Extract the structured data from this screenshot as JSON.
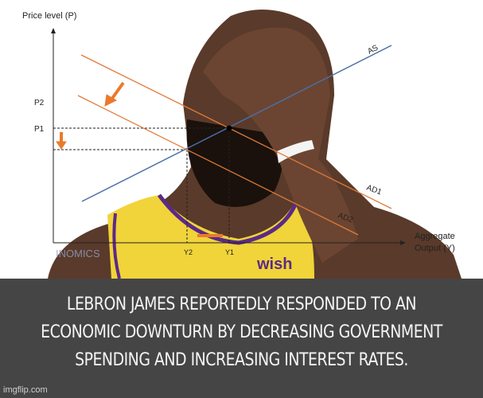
{
  "diagram": {
    "y_axis_label": "Price level (P)",
    "x_axis_label_line1": "Aggregate",
    "x_axis_label_line2": "Output (Y)",
    "labels": {
      "p2": "P2",
      "p1": "P1",
      "y1": "Y1",
      "y2": "Y2",
      "as": "AS",
      "ad1": "AD1",
      "ad2": "AD2"
    },
    "source_logo": "INOMICS",
    "colors": {
      "as_curve": "#4a6fa5",
      "ad_curves": "#e07b39",
      "arrows": "#ea7a2c"
    }
  },
  "jersey_text": "wish",
  "caption": {
    "lines": [
      "LEBRON JAMES REPORTEDLY RESPONDED TO AN",
      "ECONOMIC DOWNTURN BY DECREASING GOVERNMENT",
      "SPENDING AND INCREASING INTEREST RATES."
    ]
  },
  "watermark": "imgflip.com"
}
